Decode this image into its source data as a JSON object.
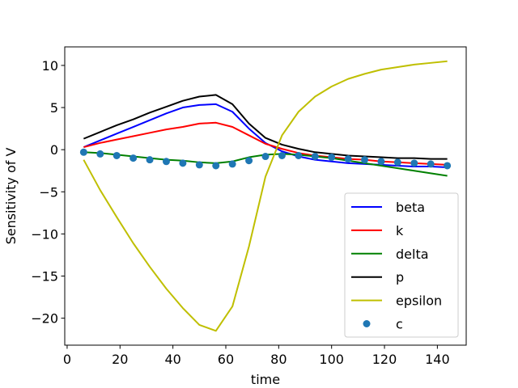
{
  "chart_data": {
    "type": "line",
    "xlabel": "time",
    "ylabel": "Sensitivity of V",
    "xlim": [
      -0.9,
      150.9
    ],
    "ylim": [
      -23.2,
      12.2
    ],
    "xticks": [
      0,
      20,
      40,
      60,
      80,
      100,
      120,
      140
    ],
    "yticks": [
      -20,
      -15,
      -10,
      -5,
      0,
      5,
      10
    ],
    "ytick_labels": [
      "−20",
      "−15",
      "−10",
      "−5",
      "0",
      "5",
      "10"
    ],
    "grid": false,
    "legend_position": "lower-right",
    "x": [
      6.25,
      12.5,
      18.75,
      25,
      31.25,
      37.5,
      43.75,
      50,
      56.25,
      62.5,
      68.75,
      75,
      81.25,
      87.5,
      93.75,
      100,
      106.25,
      112.5,
      118.75,
      125,
      131.25,
      137.5,
      143.75
    ],
    "series": [
      {
        "name": "beta",
        "color": "#0000ff",
        "style": "line",
        "values": [
          0.3,
          1.1,
          1.9,
          2.7,
          3.5,
          4.3,
          5.0,
          5.3,
          5.4,
          4.5,
          2.5,
          0.8,
          -0.2,
          -0.8,
          -1.2,
          -1.4,
          -1.6,
          -1.7,
          -1.8,
          -1.9,
          -2.0,
          -2.0,
          -2.1
        ]
      },
      {
        "name": "k",
        "color": "#ff0000",
        "style": "line",
        "values": [
          0.3,
          0.8,
          1.2,
          1.6,
          2.0,
          2.4,
          2.7,
          3.1,
          3.2,
          2.7,
          1.7,
          0.7,
          0.1,
          -0.4,
          -0.7,
          -0.9,
          -1.1,
          -1.2,
          -1.4,
          -1.5,
          -1.6,
          -1.7,
          -1.8
        ]
      },
      {
        "name": "delta",
        "color": "#008000",
        "style": "line",
        "values": [
          -0.3,
          -0.4,
          -0.6,
          -0.8,
          -1.0,
          -1.2,
          -1.3,
          -1.5,
          -1.6,
          -1.4,
          -0.9,
          -0.6,
          -0.5,
          -0.6,
          -0.8,
          -1.0,
          -1.3,
          -1.6,
          -1.9,
          -2.2,
          -2.5,
          -2.8,
          -3.1
        ]
      },
      {
        "name": "p",
        "color": "#000000",
        "style": "line",
        "values": [
          1.3,
          2.1,
          2.9,
          3.6,
          4.4,
          5.1,
          5.8,
          6.3,
          6.5,
          5.4,
          3.1,
          1.4,
          0.6,
          0.1,
          -0.3,
          -0.5,
          -0.7,
          -0.8,
          -0.9,
          -1.0,
          -1.0,
          -1.1,
          -1.1
        ]
      },
      {
        "name": "epsilon",
        "color": "#bfbf00",
        "style": "line",
        "values": [
          -1.2,
          -4.8,
          -8.0,
          -11.1,
          -13.9,
          -16.5,
          -18.8,
          -20.8,
          -21.5,
          -18.6,
          -11.5,
          -3.2,
          1.7,
          4.5,
          6.3,
          7.5,
          8.4,
          9.0,
          9.5,
          9.8,
          10.1,
          10.3,
          10.5
        ]
      },
      {
        "name": "c",
        "color": "#1f77b4",
        "style": "markers",
        "values": [
          -0.3,
          -0.5,
          -0.7,
          -1.0,
          -1.2,
          -1.4,
          -1.6,
          -1.8,
          -1.9,
          -1.7,
          -1.3,
          -0.8,
          -0.7,
          -0.7,
          -0.8,
          -0.9,
          -1.1,
          -1.2,
          -1.4,
          -1.5,
          -1.6,
          -1.7,
          -1.9
        ]
      }
    ]
  }
}
